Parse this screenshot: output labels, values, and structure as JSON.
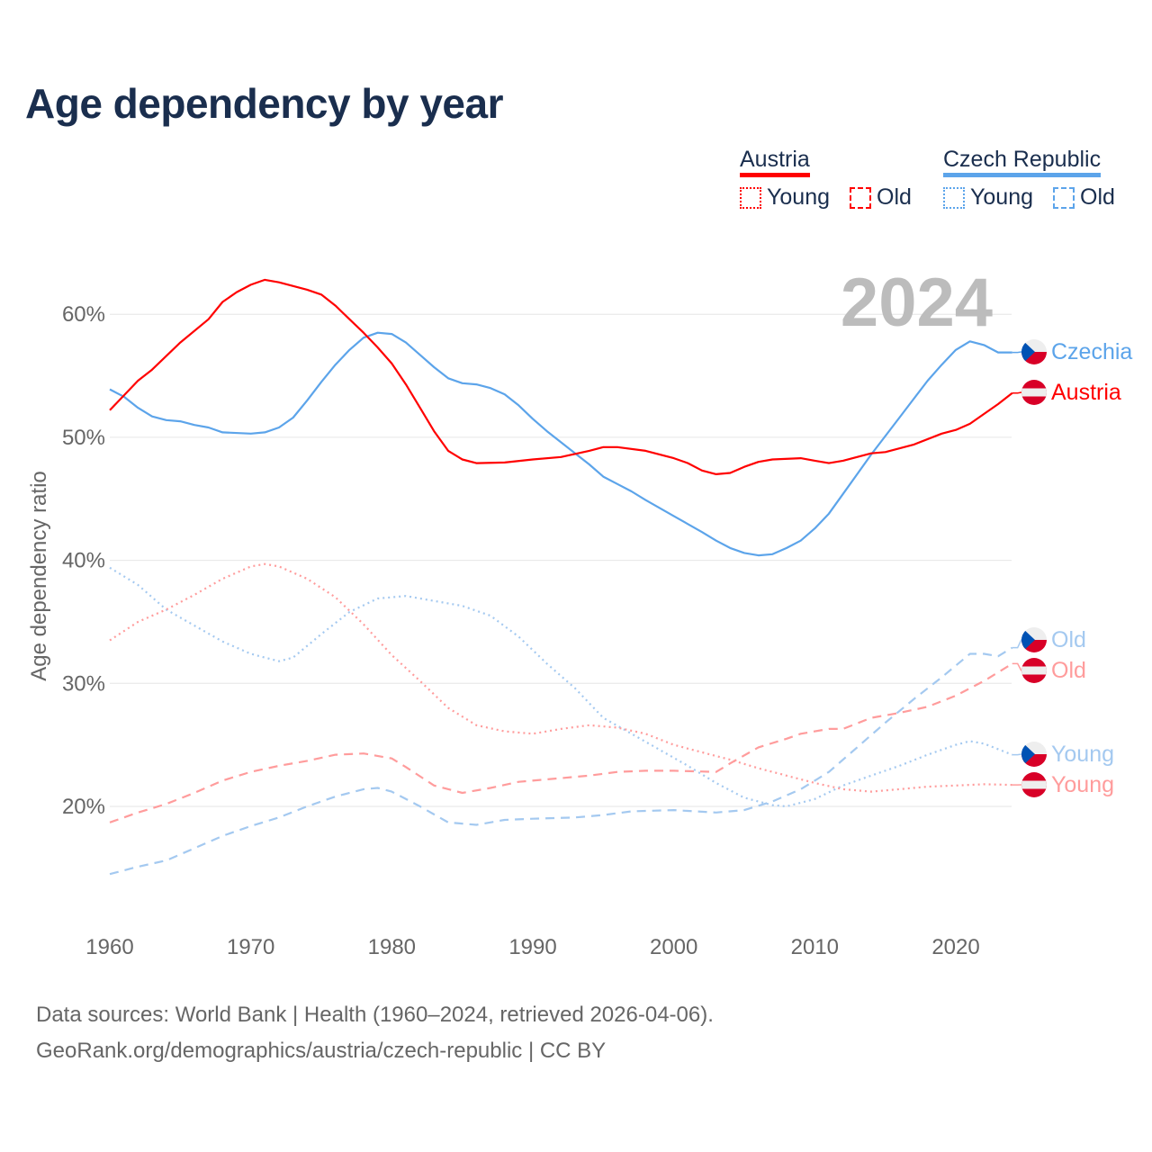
{
  "title": "Age dependency by year",
  "legend": {
    "austria": {
      "label": "Austria",
      "young": "Young",
      "old": "Old"
    },
    "czech": {
      "label": "Czech Republic",
      "young": "Young",
      "old": "Old"
    }
  },
  "year_watermark": "2024",
  "footer": {
    "line1": "Data sources: World Bank | Health (1960–2024, retrieved 2026-04-06).",
    "line2": "GeoRank.org/demographics/austria/czech-republic | CC BY"
  },
  "colors": {
    "austria": "#ff0000",
    "austria_light": "#ff9c9c",
    "czech": "#5ca4ea",
    "czech_light": "#a4c9f0"
  },
  "chart_data": {
    "type": "line",
    "title": "Age dependency by year",
    "xlabel": "",
    "ylabel": "Age dependency ratio",
    "xlim": [
      1960,
      2024
    ],
    "ylim": [
      12,
      64
    ],
    "x_ticks": [
      "1960",
      "1970",
      "1980",
      "1990",
      "2000",
      "2010",
      "2020"
    ],
    "y_ticks": [
      "20%",
      "30%",
      "40%",
      "50%",
      "60%"
    ],
    "grid": true,
    "series": [
      {
        "name": "Czechia",
        "country": "czech",
        "kind": "total",
        "end_label": "Czechia",
        "points": [
          [
            1960,
            53.9
          ],
          [
            1961,
            53.3
          ],
          [
            1962,
            52.4
          ],
          [
            1963,
            51.7
          ],
          [
            1964,
            51.4
          ],
          [
            1965,
            51.3
          ],
          [
            1966,
            51.0
          ],
          [
            1967,
            50.8
          ],
          [
            1968,
            50.4
          ],
          [
            1970,
            50.3
          ],
          [
            1971,
            50.4
          ],
          [
            1972,
            50.8
          ],
          [
            1973,
            51.6
          ],
          [
            1974,
            53.0
          ],
          [
            1975,
            54.5
          ],
          [
            1976,
            55.9
          ],
          [
            1977,
            57.1
          ],
          [
            1978,
            58.1
          ],
          [
            1979,
            58.5
          ],
          [
            1980,
            58.4
          ],
          [
            1981,
            57.7
          ],
          [
            1982,
            56.7
          ],
          [
            1983,
            55.7
          ],
          [
            1984,
            54.8
          ],
          [
            1985,
            54.4
          ],
          [
            1986,
            54.3
          ],
          [
            1987,
            54.0
          ],
          [
            1988,
            53.5
          ],
          [
            1989,
            52.6
          ],
          [
            1990,
            51.5
          ],
          [
            1991,
            50.5
          ],
          [
            1992,
            49.6
          ],
          [
            1993,
            48.7
          ],
          [
            1994,
            47.8
          ],
          [
            1995,
            46.8
          ],
          [
            1996,
            46.2
          ],
          [
            1997,
            45.6
          ],
          [
            1998,
            44.9
          ],
          [
            2000,
            43.6
          ],
          [
            2002,
            42.3
          ],
          [
            2003,
            41.6
          ],
          [
            2004,
            41.0
          ],
          [
            2005,
            40.6
          ],
          [
            2006,
            40.4
          ],
          [
            2007,
            40.5
          ],
          [
            2008,
            41.0
          ],
          [
            2009,
            41.6
          ],
          [
            2010,
            42.6
          ],
          [
            2011,
            43.8
          ],
          [
            2012,
            45.4
          ],
          [
            2013,
            47.0
          ],
          [
            2014,
            48.6
          ],
          [
            2015,
            50.1
          ],
          [
            2016,
            51.6
          ],
          [
            2017,
            53.1
          ],
          [
            2018,
            54.6
          ],
          [
            2019,
            55.9
          ],
          [
            2020,
            57.1
          ],
          [
            2021,
            57.8
          ],
          [
            2022,
            57.5
          ],
          [
            2023,
            56.9
          ],
          [
            2024,
            56.9
          ]
        ]
      },
      {
        "name": "Austria",
        "country": "austria",
        "kind": "total",
        "end_label": "Austria",
        "points": [
          [
            1960,
            52.2
          ],
          [
            1962,
            54.6
          ],
          [
            1963,
            55.5
          ],
          [
            1965,
            57.7
          ],
          [
            1967,
            59.6
          ],
          [
            1968,
            61.0
          ],
          [
            1969,
            61.8
          ],
          [
            1970,
            62.4
          ],
          [
            1971,
            62.8
          ],
          [
            1972,
            62.6
          ],
          [
            1973,
            62.3
          ],
          [
            1974,
            62.0
          ],
          [
            1975,
            61.6
          ],
          [
            1976,
            60.7
          ],
          [
            1977,
            59.6
          ],
          [
            1978,
            58.5
          ],
          [
            1979,
            57.3
          ],
          [
            1980,
            56.0
          ],
          [
            1981,
            54.3
          ],
          [
            1982,
            52.4
          ],
          [
            1983,
            50.5
          ],
          [
            1984,
            48.9
          ],
          [
            1985,
            48.2
          ],
          [
            1986,
            47.9
          ],
          [
            1988,
            47.95
          ],
          [
            1990,
            48.2
          ],
          [
            1992,
            48.4
          ],
          [
            1994,
            48.9
          ],
          [
            1995,
            49.2
          ],
          [
            1996,
            49.2
          ],
          [
            1998,
            48.9
          ],
          [
            2000,
            48.3
          ],
          [
            2001,
            47.9
          ],
          [
            2002,
            47.3
          ],
          [
            2003,
            47.0
          ],
          [
            2004,
            47.1
          ],
          [
            2005,
            47.6
          ],
          [
            2006,
            48.0
          ],
          [
            2007,
            48.2
          ],
          [
            2009,
            48.3
          ],
          [
            2010,
            48.1
          ],
          [
            2011,
            47.9
          ],
          [
            2012,
            48.1
          ],
          [
            2014,
            48.7
          ],
          [
            2015,
            48.8
          ],
          [
            2017,
            49.4
          ],
          [
            2019,
            50.3
          ],
          [
            2020,
            50.6
          ],
          [
            2021,
            51.1
          ],
          [
            2022,
            51.9
          ],
          [
            2023,
            52.7
          ],
          [
            2024,
            53.6
          ]
        ]
      },
      {
        "name": "Czechia Old",
        "country": "czech",
        "kind": "old",
        "end_label": "Old",
        "points": [
          [
            1960,
            14.5
          ],
          [
            1962,
            15.1
          ],
          [
            1964,
            15.6
          ],
          [
            1966,
            16.6
          ],
          [
            1968,
            17.6
          ],
          [
            1970,
            18.4
          ],
          [
            1972,
            19.1
          ],
          [
            1974,
            20.0
          ],
          [
            1976,
            20.8
          ],
          [
            1978,
            21.4
          ],
          [
            1979,
            21.5
          ],
          [
            1980,
            21.2
          ],
          [
            1982,
            20.0
          ],
          [
            1984,
            18.7
          ],
          [
            1986,
            18.5
          ],
          [
            1988,
            18.9
          ],
          [
            1990,
            19.0
          ],
          [
            1993,
            19.1
          ],
          [
            1995,
            19.3
          ],
          [
            1997,
            19.6
          ],
          [
            2000,
            19.7
          ],
          [
            2003,
            19.5
          ],
          [
            2005,
            19.7
          ],
          [
            2007,
            20.4
          ],
          [
            2009,
            21.4
          ],
          [
            2011,
            22.8
          ],
          [
            2013,
            24.8
          ],
          [
            2015,
            26.8
          ],
          [
            2017,
            28.7
          ],
          [
            2019,
            30.5
          ],
          [
            2021,
            32.4
          ],
          [
            2022,
            32.4
          ],
          [
            2023,
            32.2
          ],
          [
            2024,
            32.9
          ]
        ]
      },
      {
        "name": "Austria Old",
        "country": "austria",
        "kind": "old",
        "end_label": "Old",
        "points": [
          [
            1960,
            18.7
          ],
          [
            1962,
            19.5
          ],
          [
            1964,
            20.2
          ],
          [
            1966,
            21.1
          ],
          [
            1968,
            22.1
          ],
          [
            1970,
            22.8
          ],
          [
            1972,
            23.3
          ],
          [
            1974,
            23.7
          ],
          [
            1976,
            24.2
          ],
          [
            1978,
            24.3
          ],
          [
            1980,
            23.9
          ],
          [
            1981,
            23.2
          ],
          [
            1983,
            21.7
          ],
          [
            1985,
            21.1
          ],
          [
            1987,
            21.5
          ],
          [
            1989,
            22.0
          ],
          [
            1992,
            22.3
          ],
          [
            1994,
            22.5
          ],
          [
            1996,
            22.8
          ],
          [
            1998,
            22.9
          ],
          [
            2000,
            22.9
          ],
          [
            2003,
            22.8
          ],
          [
            2004,
            23.5
          ],
          [
            2006,
            24.8
          ],
          [
            2008,
            25.5
          ],
          [
            2009,
            25.9
          ],
          [
            2011,
            26.3
          ],
          [
            2012,
            26.3
          ],
          [
            2014,
            27.2
          ],
          [
            2016,
            27.6
          ],
          [
            2018,
            28.1
          ],
          [
            2020,
            29.0
          ],
          [
            2022,
            30.2
          ],
          [
            2024,
            31.6
          ]
        ]
      },
      {
        "name": "Czechia Young",
        "country": "czech",
        "kind": "young",
        "end_label": "Young",
        "points": [
          [
            1960,
            39.4
          ],
          [
            1962,
            38.0
          ],
          [
            1964,
            36.0
          ],
          [
            1966,
            34.7
          ],
          [
            1968,
            33.4
          ],
          [
            1970,
            32.4
          ],
          [
            1972,
            31.8
          ],
          [
            1973,
            32.1
          ],
          [
            1975,
            34.0
          ],
          [
            1977,
            35.8
          ],
          [
            1979,
            36.9
          ],
          [
            1981,
            37.1
          ],
          [
            1983,
            36.7
          ],
          [
            1985,
            36.3
          ],
          [
            1987,
            35.5
          ],
          [
            1989,
            33.8
          ],
          [
            1991,
            31.6
          ],
          [
            1993,
            29.6
          ],
          [
            1995,
            27.2
          ],
          [
            1997,
            25.9
          ],
          [
            1999,
            24.6
          ],
          [
            2001,
            23.3
          ],
          [
            2003,
            21.9
          ],
          [
            2005,
            20.7
          ],
          [
            2007,
            20.1
          ],
          [
            2008,
            20.0
          ],
          [
            2010,
            20.6
          ],
          [
            2012,
            21.7
          ],
          [
            2014,
            22.5
          ],
          [
            2016,
            23.3
          ],
          [
            2018,
            24.2
          ],
          [
            2020,
            25.0
          ],
          [
            2021,
            25.3
          ],
          [
            2022,
            25.1
          ],
          [
            2024,
            24.2
          ]
        ]
      },
      {
        "name": "Austria Young",
        "country": "austria",
        "kind": "young",
        "end_label": "Young",
        "points": [
          [
            1960,
            33.5
          ],
          [
            1962,
            35.0
          ],
          [
            1964,
            36.0
          ],
          [
            1966,
            37.2
          ],
          [
            1968,
            38.5
          ],
          [
            1970,
            39.5
          ],
          [
            1971,
            39.7
          ],
          [
            1972,
            39.5
          ],
          [
            1974,
            38.5
          ],
          [
            1976,
            37.0
          ],
          [
            1978,
            34.8
          ],
          [
            1980,
            32.3
          ],
          [
            1982,
            30.2
          ],
          [
            1984,
            28.0
          ],
          [
            1986,
            26.6
          ],
          [
            1988,
            26.1
          ],
          [
            1990,
            25.9
          ],
          [
            1992,
            26.3
          ],
          [
            1994,
            26.6
          ],
          [
            1996,
            26.4
          ],
          [
            1998,
            25.9
          ],
          [
            2000,
            25.0
          ],
          [
            2002,
            24.4
          ],
          [
            2004,
            23.8
          ],
          [
            2006,
            23.1
          ],
          [
            2008,
            22.5
          ],
          [
            2010,
            21.9
          ],
          [
            2012,
            21.4
          ],
          [
            2014,
            21.2
          ],
          [
            2016,
            21.4
          ],
          [
            2018,
            21.6
          ],
          [
            2020,
            21.7
          ],
          [
            2022,
            21.8
          ],
          [
            2024,
            21.75
          ]
        ]
      }
    ]
  }
}
